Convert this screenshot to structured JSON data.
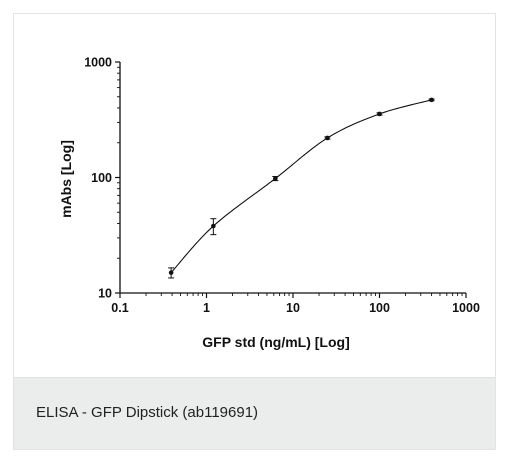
{
  "caption": "ELISA - GFP Dipstick (ab119691)",
  "chart_data": {
    "type": "scatter",
    "title": "",
    "xlabel": "GFP std (ng/mL) [Log]",
    "ylabel": "mAbs [Log]",
    "xscale": "log",
    "yscale": "log",
    "xlim": [
      0.1,
      1000
    ],
    "ylim": [
      10,
      1000
    ],
    "xticks": [
      "0.1",
      "1",
      "10",
      "100",
      "1000"
    ],
    "yticks": [
      "10",
      "100",
      "1000"
    ],
    "grid": false,
    "legend": "none",
    "points": [
      {
        "x": 0.39,
        "y": 15,
        "err": 1.5
      },
      {
        "x": 1.2,
        "y": 38,
        "err": 6
      },
      {
        "x": 6.25,
        "y": 98,
        "err": 4
      },
      {
        "x": 25,
        "y": 220,
        "err": 5
      },
      {
        "x": 100,
        "y": 355,
        "err": 8
      },
      {
        "x": 400,
        "y": 470,
        "err": 8
      }
    ],
    "fit_curve": true,
    "colors": {
      "marks": "#111111",
      "axis": "#111111"
    }
  }
}
